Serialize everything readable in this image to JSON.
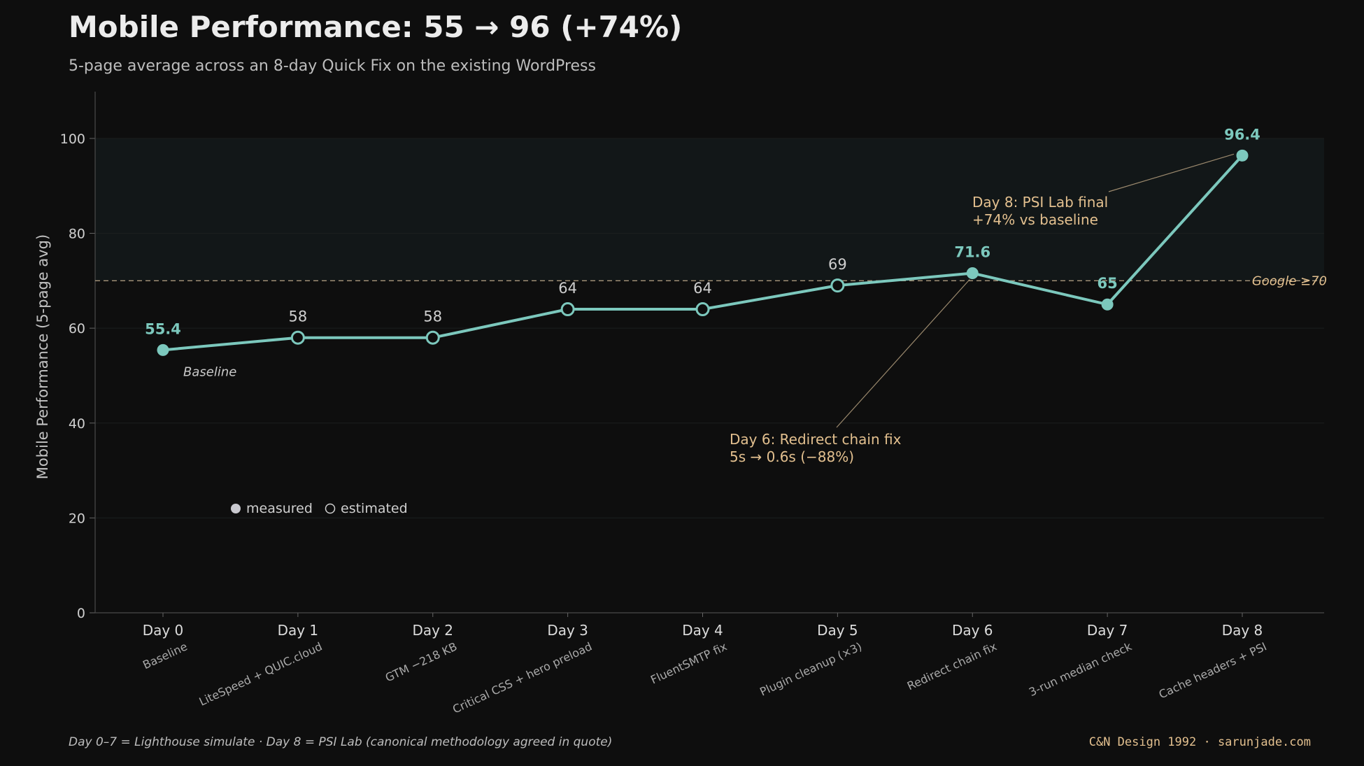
{
  "header": {
    "title": "Mobile Performance: 55 → 96 (+74%)",
    "subtitle": "5-page average across an 8-day Quick Fix on the existing WordPress"
  },
  "footer": {
    "methodology": "Day 0–7 = Lighthouse simulate · Day 8 = PSI Lab (canonical methodology agreed in quote)",
    "credit": "C&N Design 1992 · sarunjade.com"
  },
  "colors": {
    "line": "#7cc8bd",
    "annotation": "#e3c08f",
    "background": "#0e0e0e",
    "target_zone": "#121718"
  },
  "chart_data": {
    "type": "line",
    "title": "Mobile Performance: 55 → 96 (+74%)",
    "subtitle": "5-page average across an 8-day Quick Fix on the existing WordPress",
    "xlabel": "",
    "ylabel": "Mobile Performance (5-page avg)",
    "ylim": [
      0,
      105
    ],
    "yticks": [
      0,
      20,
      40,
      60,
      80,
      100
    ],
    "grid": true,
    "categories": [
      "Day 0",
      "Day 1",
      "Day 2",
      "Day 3",
      "Day 4",
      "Day 5",
      "Day 6",
      "Day 7",
      "Day 8"
    ],
    "sublabels": [
      "Baseline",
      "LiteSpeed + QUIC.cloud",
      "GTM −218 KB",
      "Critical CSS + hero preload",
      "FluentSMTP fix",
      "Plugin cleanup (×3)",
      "Redirect chain fix",
      "3-run median check",
      "Cache headers + PSI"
    ],
    "series": [
      {
        "values": [
          55.4,
          58,
          58,
          64,
          64,
          69,
          71.6,
          65,
          96.4
        ],
        "value_labels": [
          "55.4",
          "58",
          "58",
          "64",
          "64",
          "69",
          "71.6",
          "65",
          "96.4"
        ],
        "measured": [
          true,
          false,
          false,
          false,
          false,
          false,
          true,
          true,
          true
        ]
      }
    ],
    "point_notes": [
      {
        "index": 0,
        "text": "Baseline"
      }
    ],
    "reference_line": {
      "value": 70,
      "label": "Google ≥70"
    },
    "target_band": [
      70,
      100
    ],
    "legend": {
      "measured": "measured",
      "estimated": "estimated",
      "placement": "bottom-left"
    },
    "annotations": [
      {
        "index": 8,
        "lines": [
          "Day 8: PSI Lab final",
          "+74% vs baseline"
        ]
      },
      {
        "index": 6,
        "lines": [
          "Day 6: Redirect chain fix",
          "5s → 0.6s  (−88%)"
        ]
      }
    ]
  }
}
